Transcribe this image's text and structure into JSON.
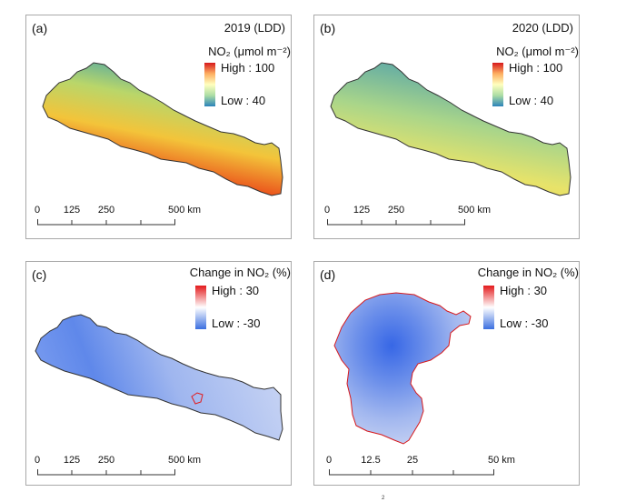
{
  "panels": [
    {
      "label": "(a)",
      "title": "2019 (LDD)",
      "legend": {
        "heading": "NO₂ (μmol m⁻²)",
        "high": "High : 100",
        "low": "Low : 40"
      },
      "scale": {
        "ticks": [
          "0",
          "125",
          "250",
          "500 km"
        ]
      }
    },
    {
      "label": "(b)",
      "title": "2020 (LDD)",
      "legend": {
        "heading": "NO₂ (μmol m⁻²)",
        "high": "High : 100",
        "low": "Low : 40"
      },
      "scale": {
        "ticks": [
          "0",
          "125",
          "250",
          "500 km"
        ]
      }
    },
    {
      "label": "(c)",
      "legend": {
        "heading": "Change in NO₂ (%)",
        "high": "High : 30",
        "low": "Low : -30"
      },
      "scale": {
        "ticks": [
          "0",
          "125",
          "250",
          "500 km"
        ]
      }
    },
    {
      "label": "(d)",
      "legend": {
        "heading": "Change in NO₂ (%)",
        "high": "High : 30",
        "low": "Low : -30"
      },
      "scale": {
        "ticks": [
          "0",
          "12.5",
          "25",
          "50 km"
        ]
      }
    }
  ],
  "colors": {
    "no2_ramp": [
      "#d7191c",
      "#fdae61",
      "#ffffbf",
      "#abdda4",
      "#2b83ba"
    ],
    "change_ramp": [
      "#e31a1c",
      "#ffffff",
      "#3b6fe0"
    ]
  },
  "footnote": "2"
}
